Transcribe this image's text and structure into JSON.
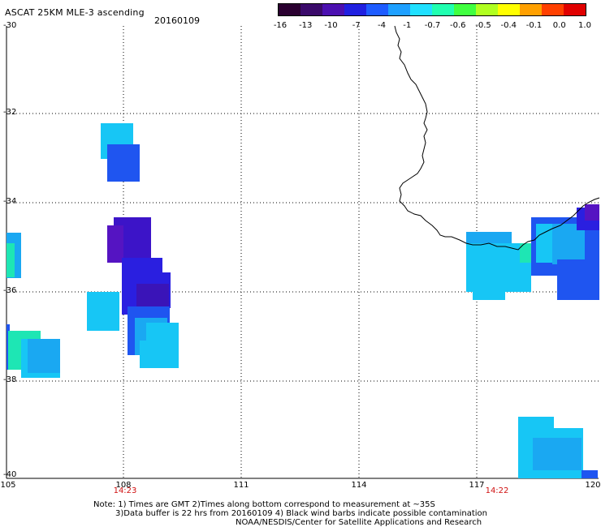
{
  "header": {
    "title": "ASCAT 25KM MLE-3 ascending",
    "date": "20160109"
  },
  "colorbar": {
    "labels": [
      "-16",
      "-13",
      "-10",
      "-7",
      "-4",
      "-1",
      "-0.7",
      "-0.6",
      "-0.5",
      "-0.4",
      "-0.1",
      "0.0",
      "1.0"
    ],
    "colors": [
      "#2a0030",
      "#3a0a6a",
      "#4b10b0",
      "#2020e0",
      "#1e5cff",
      "#1ea0ff",
      "#20e0ff",
      "#20ffb0",
      "#40ff40",
      "#b0ff20",
      "#ffff00",
      "#ffa000",
      "#ff4000",
      "#e00000"
    ]
  },
  "axes": {
    "latitude_labels": [
      "-30",
      "-32",
      "-34",
      "-36",
      "-38",
      "-40"
    ],
    "longitude_labels": [
      "105",
      "108",
      "111",
      "114",
      "117",
      "120"
    ],
    "grid": "dotted"
  },
  "pass_times": [
    "14:23",
    "14:22"
  ],
  "notes": [
    "Note: 1) Times are GMT 2)Times along bottom correspond to measurement at ~35S",
    "3)Data buffer is 22 hrs from 20160109 4) Black wind barbs indicate possible contamination",
    "NOAA/NESDIS/Center for Satellite Applications and Research"
  ],
  "swath_colors": {
    "cyan": "#17c6f5",
    "light_blue": "#1aa8f2",
    "blue": "#1f55f0",
    "deep_blue": "#2a1fe0",
    "purple": "#5514c2",
    "green": "#1ee6b4"
  }
}
